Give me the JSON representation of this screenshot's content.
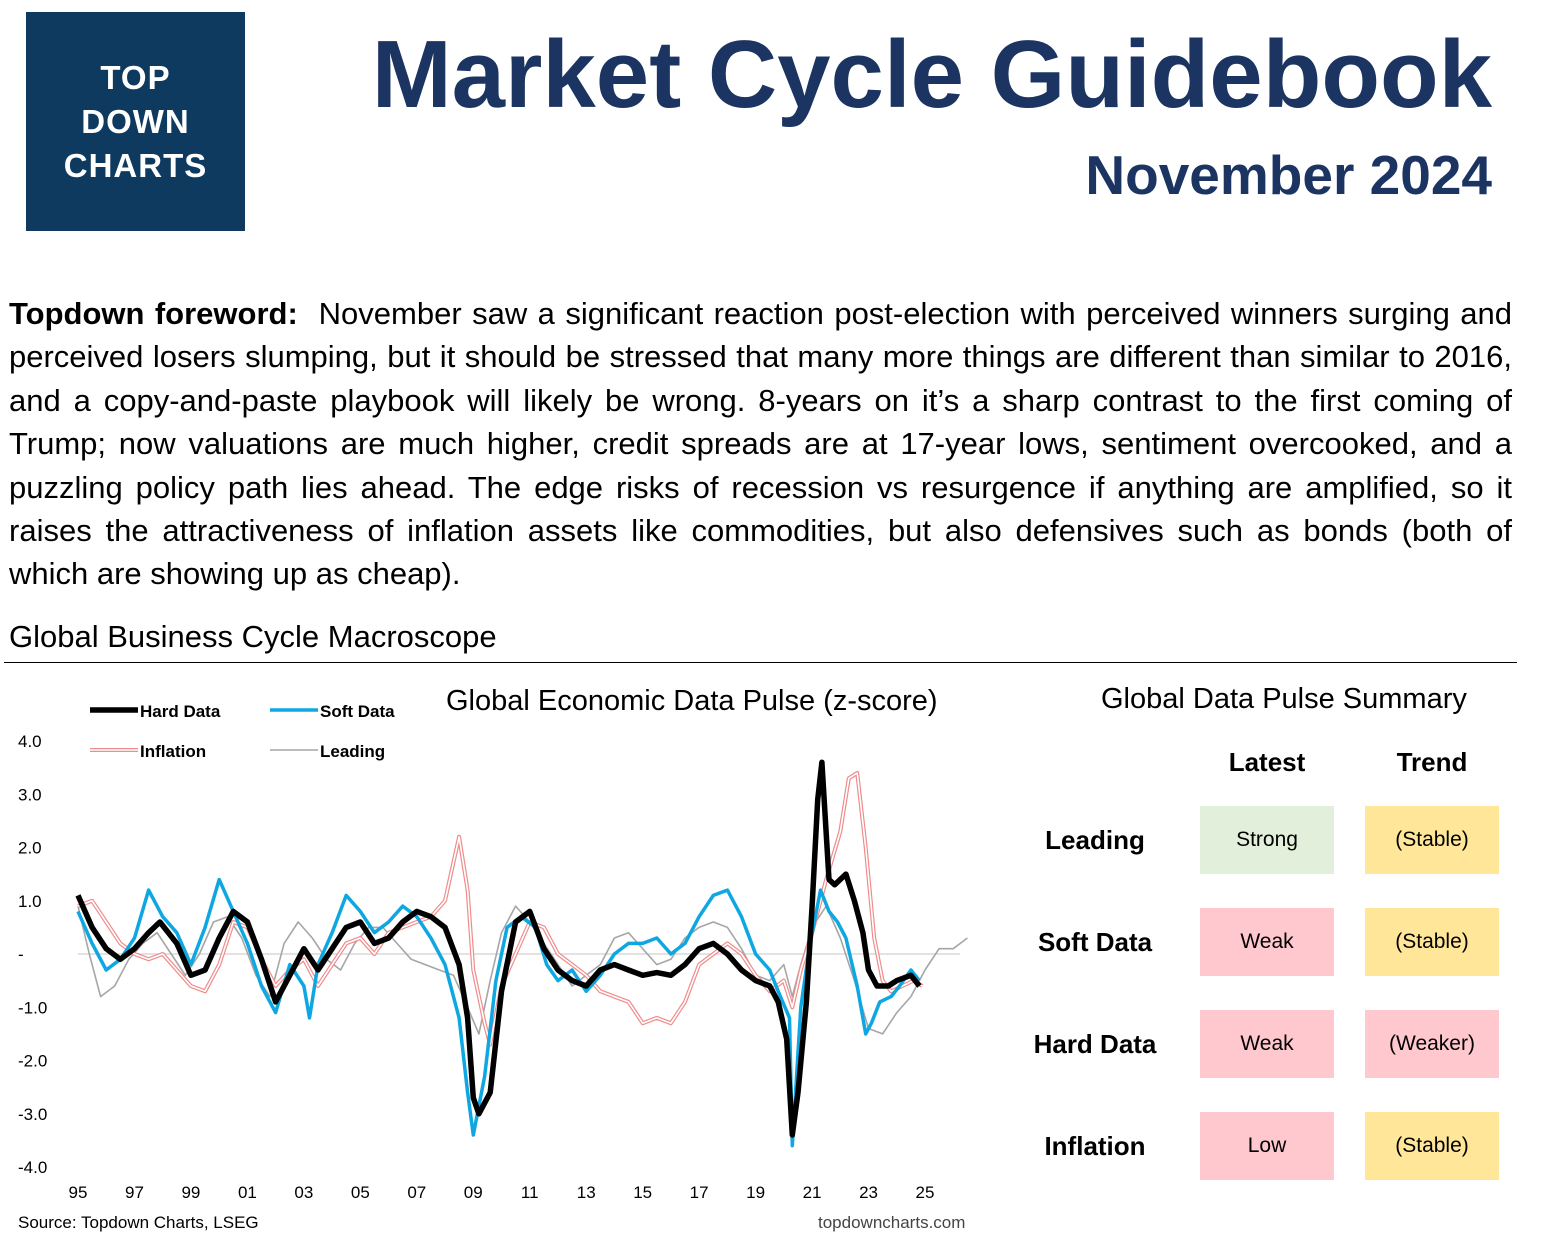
{
  "logo": {
    "lines": [
      "TOP",
      "DOWN",
      "CHARTS"
    ]
  },
  "header": {
    "title": "Market Cycle Guidebook",
    "subtitle": "November 2024"
  },
  "foreword": {
    "label": "Topdown foreword:",
    "text": "November saw a significant reaction post-election with perceived winners surging and perceived losers slumping, but it should be stressed that many more things are different than similar to 2016, and a copy-and-paste playbook will likely be wrong.  8-years on it’s a sharp contrast to the first coming of Trump; now valuations are much higher, credit spreads are at 17-year lows, sentiment overcooked, and a puzzling policy path lies ahead.  The edge risks of recession vs resurgence if anything are amplified, so it raises the attractiveness of inflation assets like commodities, but also defensives such as bonds (both of which are showing up as cheap)."
  },
  "section_heading": "Global Business Cycle Macroscope",
  "chart_data": {
    "type": "line",
    "title": "Global Economic Data Pulse (z-score)",
    "xlabel": "",
    "ylabel": "",
    "ylim": [
      -4,
      4
    ],
    "xlim": [
      1995,
      2026.8
    ],
    "y_ticks": [
      "4.0",
      "3.0",
      "2.0",
      "1.0",
      "-",
      "-1.0",
      "-2.0",
      "-3.0",
      "-4.0"
    ],
    "x_ticks": [
      "95",
      "97",
      "99",
      "01",
      "03",
      "05",
      "07",
      "09",
      "11",
      "13",
      "15",
      "17",
      "19",
      "21",
      "23",
      "25"
    ],
    "legend": [
      "Hard Data",
      "Soft Data",
      "Inflation",
      "Leading"
    ],
    "legend_position": "top-left",
    "series": [
      {
        "name": "Hard Data",
        "color": "#000000",
        "style": "thick",
        "points": [
          [
            1995.0,
            1.1
          ],
          [
            1995.5,
            0.5
          ],
          [
            1996.0,
            0.1
          ],
          [
            1996.5,
            -0.1
          ],
          [
            1997.0,
            0.1
          ],
          [
            1997.5,
            0.4
          ],
          [
            1997.9,
            0.6
          ],
          [
            1998.5,
            0.2
          ],
          [
            1999.0,
            -0.4
          ],
          [
            1999.5,
            -0.3
          ],
          [
            2000.0,
            0.3
          ],
          [
            2000.5,
            0.8
          ],
          [
            2001.0,
            0.6
          ],
          [
            2001.5,
            -0.1
          ],
          [
            2002.0,
            -0.9
          ],
          [
            2002.5,
            -0.4
          ],
          [
            2003.0,
            0.1
          ],
          [
            2003.5,
            -0.3
          ],
          [
            2004.0,
            0.1
          ],
          [
            2004.5,
            0.5
          ],
          [
            2005.0,
            0.6
          ],
          [
            2005.5,
            0.2
          ],
          [
            2006.0,
            0.3
          ],
          [
            2006.5,
            0.6
          ],
          [
            2007.0,
            0.8
          ],
          [
            2007.5,
            0.7
          ],
          [
            2008.0,
            0.5
          ],
          [
            2008.5,
            -0.2
          ],
          [
            2008.8,
            -1.2
          ],
          [
            2009.0,
            -2.7
          ],
          [
            2009.2,
            -3.0
          ],
          [
            2009.6,
            -2.6
          ],
          [
            2010.0,
            -0.7
          ],
          [
            2010.5,
            0.6
          ],
          [
            2011.0,
            0.8
          ],
          [
            2011.5,
            0.1
          ],
          [
            2012.0,
            -0.3
          ],
          [
            2012.5,
            -0.5
          ],
          [
            2013.0,
            -0.6
          ],
          [
            2013.5,
            -0.3
          ],
          [
            2014.0,
            -0.2
          ],
          [
            2014.5,
            -0.3
          ],
          [
            2015.0,
            -0.4
          ],
          [
            2015.5,
            -0.35
          ],
          [
            2016.0,
            -0.4
          ],
          [
            2016.5,
            -0.2
          ],
          [
            2017.0,
            0.1
          ],
          [
            2017.5,
            0.2
          ],
          [
            2018.0,
            0.0
          ],
          [
            2018.5,
            -0.3
          ],
          [
            2019.0,
            -0.5
          ],
          [
            2019.5,
            -0.6
          ],
          [
            2019.8,
            -0.9
          ],
          [
            2020.1,
            -1.6
          ],
          [
            2020.3,
            -3.4
          ],
          [
            2020.5,
            -2.6
          ],
          [
            2020.8,
            -0.9
          ],
          [
            2021.0,
            0.9
          ],
          [
            2021.2,
            2.9
          ],
          [
            2021.35,
            3.6
          ],
          [
            2021.6,
            1.4
          ],
          [
            2021.8,
            1.3
          ],
          [
            2022.2,
            1.5
          ],
          [
            2022.5,
            1.0
          ],
          [
            2022.8,
            0.4
          ],
          [
            2023.0,
            -0.3
          ],
          [
            2023.3,
            -0.6
          ],
          [
            2023.7,
            -0.6
          ],
          [
            2024.0,
            -0.5
          ],
          [
            2024.5,
            -0.4
          ],
          [
            2024.8,
            -0.6
          ]
        ]
      },
      {
        "name": "Soft Data",
        "color": "#0fa7e1",
        "style": "medium",
        "points": [
          [
            1995.0,
            0.8
          ],
          [
            1995.5,
            0.2
          ],
          [
            1996.0,
            -0.3
          ],
          [
            1996.5,
            -0.1
          ],
          [
            1997.0,
            0.3
          ],
          [
            1997.5,
            1.2
          ],
          [
            1998.0,
            0.7
          ],
          [
            1998.5,
            0.4
          ],
          [
            1999.0,
            -0.2
          ],
          [
            1999.5,
            0.5
          ],
          [
            2000.0,
            1.4
          ],
          [
            2000.5,
            0.8
          ],
          [
            2001.0,
            0.2
          ],
          [
            2001.5,
            -0.6
          ],
          [
            2002.0,
            -1.1
          ],
          [
            2002.5,
            -0.2
          ],
          [
            2003.0,
            -0.6
          ],
          [
            2003.2,
            -1.2
          ],
          [
            2003.5,
            -0.2
          ],
          [
            2004.0,
            0.4
          ],
          [
            2004.5,
            1.1
          ],
          [
            2005.0,
            0.8
          ],
          [
            2005.5,
            0.4
          ],
          [
            2006.0,
            0.6
          ],
          [
            2006.5,
            0.9
          ],
          [
            2007.0,
            0.7
          ],
          [
            2007.5,
            0.3
          ],
          [
            2008.0,
            -0.2
          ],
          [
            2008.5,
            -1.2
          ],
          [
            2008.8,
            -2.6
          ],
          [
            2009.0,
            -3.4
          ],
          [
            2009.4,
            -2.3
          ],
          [
            2009.8,
            -0.5
          ],
          [
            2010.2,
            0.5
          ],
          [
            2010.7,
            0.7
          ],
          [
            2011.2,
            0.5
          ],
          [
            2011.6,
            -0.2
          ],
          [
            2012.0,
            -0.5
          ],
          [
            2012.5,
            -0.3
          ],
          [
            2013.0,
            -0.7
          ],
          [
            2013.5,
            -0.4
          ],
          [
            2014.0,
            0.0
          ],
          [
            2014.5,
            0.2
          ],
          [
            2015.0,
            0.2
          ],
          [
            2015.5,
            0.3
          ],
          [
            2016.0,
            0.0
          ],
          [
            2016.5,
            0.2
          ],
          [
            2017.0,
            0.7
          ],
          [
            2017.5,
            1.1
          ],
          [
            2018.0,
            1.2
          ],
          [
            2018.5,
            0.7
          ],
          [
            2019.0,
            0.0
          ],
          [
            2019.5,
            -0.3
          ],
          [
            2019.8,
            -0.7
          ],
          [
            2020.2,
            -1.2
          ],
          [
            2020.3,
            -3.6
          ],
          [
            2020.6,
            -1.0
          ],
          [
            2020.9,
            0.1
          ],
          [
            2021.3,
            1.2
          ],
          [
            2021.6,
            0.8
          ],
          [
            2021.9,
            0.6
          ],
          [
            2022.2,
            0.3
          ],
          [
            2022.6,
            -0.6
          ],
          [
            2022.9,
            -1.5
          ],
          [
            2023.1,
            -1.3
          ],
          [
            2023.4,
            -0.9
          ],
          [
            2023.8,
            -0.8
          ],
          [
            2024.1,
            -0.6
          ],
          [
            2024.5,
            -0.3
          ],
          [
            2024.8,
            -0.5
          ]
        ]
      },
      {
        "name": "Inflation",
        "color": "#ef8c8c",
        "style": "double",
        "points": [
          [
            1995.0,
            0.9
          ],
          [
            1995.5,
            1.0
          ],
          [
            1996.0,
            0.6
          ],
          [
            1996.5,
            0.2
          ],
          [
            1997.0,
            0.0
          ],
          [
            1997.5,
            -0.1
          ],
          [
            1998.0,
            0.0
          ],
          [
            1998.5,
            -0.3
          ],
          [
            1999.0,
            -0.6
          ],
          [
            1999.5,
            -0.7
          ],
          [
            2000.0,
            -0.2
          ],
          [
            2000.5,
            0.6
          ],
          [
            2001.0,
            0.5
          ],
          [
            2001.5,
            -0.1
          ],
          [
            2002.0,
            -0.6
          ],
          [
            2002.5,
            -0.3
          ],
          [
            2003.0,
            -0.1
          ],
          [
            2003.5,
            -0.6
          ],
          [
            2004.0,
            -0.2
          ],
          [
            2004.5,
            0.2
          ],
          [
            2005.0,
            0.3
          ],
          [
            2005.5,
            0.0
          ],
          [
            2006.0,
            0.4
          ],
          [
            2006.5,
            0.5
          ],
          [
            2007.0,
            0.6
          ],
          [
            2007.5,
            0.7
          ],
          [
            2008.0,
            1.0
          ],
          [
            2008.5,
            2.2
          ],
          [
            2008.8,
            1.2
          ],
          [
            2009.0,
            -0.3
          ],
          [
            2009.4,
            -1.3
          ],
          [
            2009.6,
            -1.7
          ],
          [
            2010.0,
            -0.6
          ],
          [
            2010.5,
            0.0
          ],
          [
            2011.0,
            0.6
          ],
          [
            2011.5,
            0.5
          ],
          [
            2012.0,
            0.0
          ],
          [
            2012.5,
            -0.2
          ],
          [
            2013.0,
            -0.4
          ],
          [
            2013.5,
            -0.7
          ],
          [
            2014.0,
            -0.8
          ],
          [
            2014.5,
            -0.9
          ],
          [
            2015.0,
            -1.3
          ],
          [
            2015.5,
            -1.2
          ],
          [
            2016.0,
            -1.3
          ],
          [
            2016.5,
            -0.9
          ],
          [
            2017.0,
            -0.2
          ],
          [
            2017.5,
            0.0
          ],
          [
            2018.0,
            0.2
          ],
          [
            2018.5,
            0.0
          ],
          [
            2019.0,
            -0.4
          ],
          [
            2019.5,
            -0.7
          ],
          [
            2020.0,
            -0.5
          ],
          [
            2020.3,
            -1.0
          ],
          [
            2020.6,
            -0.3
          ],
          [
            2021.0,
            0.4
          ],
          [
            2021.5,
            1.4
          ],
          [
            2022.0,
            2.3
          ],
          [
            2022.3,
            3.3
          ],
          [
            2022.6,
            3.4
          ],
          [
            2022.9,
            2.0
          ],
          [
            2023.2,
            0.3
          ],
          [
            2023.5,
            -0.5
          ],
          [
            2023.8,
            -0.7
          ],
          [
            2024.2,
            -0.6
          ],
          [
            2024.6,
            -0.5
          ],
          [
            2024.9,
            -0.6
          ]
        ]
      },
      {
        "name": "Leading",
        "color": "#a6a6a6",
        "style": "thin",
        "points": [
          [
            1995.0,
            0.9
          ],
          [
            1995.4,
            0.0
          ],
          [
            1995.8,
            -0.8
          ],
          [
            1996.3,
            -0.6
          ],
          [
            1996.8,
            -0.1
          ],
          [
            1997.3,
            0.2
          ],
          [
            1997.8,
            0.4
          ],
          [
            1998.3,
            0.0
          ],
          [
            1998.8,
            -0.4
          ],
          [
            1999.3,
            0.0
          ],
          [
            1999.8,
            0.6
          ],
          [
            2000.3,
            0.7
          ],
          [
            2000.8,
            0.3
          ],
          [
            2001.3,
            -0.4
          ],
          [
            2001.8,
            -0.8
          ],
          [
            2002.3,
            0.2
          ],
          [
            2002.8,
            0.6
          ],
          [
            2003.3,
            0.3
          ],
          [
            2003.8,
            -0.1
          ],
          [
            2004.3,
            -0.3
          ],
          [
            2004.8,
            0.2
          ],
          [
            2005.3,
            0.5
          ],
          [
            2005.8,
            0.5
          ],
          [
            2006.3,
            0.2
          ],
          [
            2006.8,
            -0.1
          ],
          [
            2007.3,
            -0.2
          ],
          [
            2007.8,
            -0.3
          ],
          [
            2008.3,
            -0.4
          ],
          [
            2008.8,
            -1.0
          ],
          [
            2009.2,
            -1.5
          ],
          [
            2009.6,
            -0.5
          ],
          [
            2010.0,
            0.4
          ],
          [
            2010.5,
            0.9
          ],
          [
            2011.0,
            0.6
          ],
          [
            2011.5,
            0.2
          ],
          [
            2012.0,
            -0.2
          ],
          [
            2012.5,
            -0.6
          ],
          [
            2013.0,
            -0.4
          ],
          [
            2013.5,
            -0.2
          ],
          [
            2014.0,
            0.3
          ],
          [
            2014.5,
            0.4
          ],
          [
            2015.0,
            0.1
          ],
          [
            2015.5,
            -0.2
          ],
          [
            2016.0,
            -0.1
          ],
          [
            2016.5,
            0.3
          ],
          [
            2017.0,
            0.5
          ],
          [
            2017.5,
            0.6
          ],
          [
            2018.0,
            0.5
          ],
          [
            2018.5,
            0.1
          ],
          [
            2019.0,
            -0.4
          ],
          [
            2019.5,
            -0.5
          ],
          [
            2020.0,
            -0.2
          ],
          [
            2020.3,
            -0.8
          ],
          [
            2020.6,
            -0.2
          ],
          [
            2021.0,
            0.5
          ],
          [
            2021.5,
            0.9
          ],
          [
            2022.0,
            0.3
          ],
          [
            2022.5,
            -0.5
          ],
          [
            2023.0,
            -1.4
          ],
          [
            2023.5,
            -1.5
          ],
          [
            2024.0,
            -1.1
          ],
          [
            2024.5,
            -0.8
          ],
          [
            2025.0,
            -0.3
          ],
          [
            2025.5,
            0.1
          ],
          [
            2026.0,
            0.1
          ],
          [
            2026.5,
            0.3
          ]
        ]
      }
    ]
  },
  "source": "Source: Topdown Charts, LSEG",
  "site": "topdowncharts.com",
  "summary": {
    "title": "Global Data Pulse Summary",
    "columns": [
      "Latest",
      "Trend"
    ],
    "rows": [
      {
        "label": "Leading",
        "latest": "Strong",
        "latest_color": "#e2efda",
        "trend": "(Stable)",
        "trend_color": "#ffe699"
      },
      {
        "label": "Soft Data",
        "latest": "Weak",
        "latest_color": "#ffc7ce",
        "trend": "(Stable)",
        "trend_color": "#ffe699"
      },
      {
        "label": "Hard Data",
        "latest": "Weak",
        "latest_color": "#ffc7ce",
        "trend": "(Weaker)",
        "trend_color": "#ffc7ce"
      },
      {
        "label": "Inflation",
        "latest": "Low",
        "latest_color": "#ffc7ce",
        "trend": "(Stable)",
        "trend_color": "#ffe699"
      }
    ]
  }
}
